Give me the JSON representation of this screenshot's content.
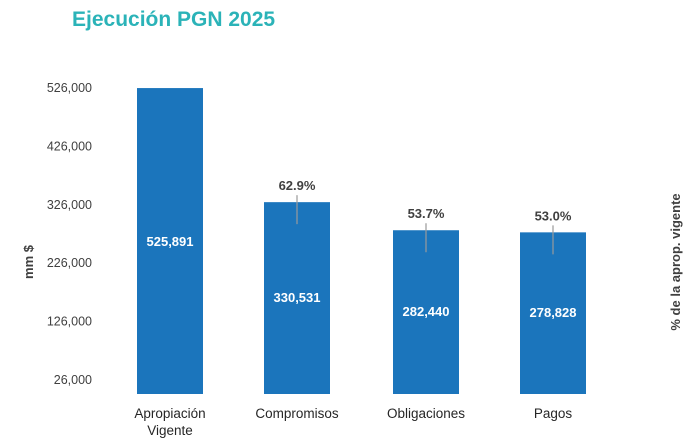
{
  "chart_data": {
    "type": "bar",
    "title": "Ejecución PGN 2025",
    "ylabel": "mm $",
    "y2label": "% de la aprop. vigente",
    "ylim": [
      26000,
      526000
    ],
    "yticks": [
      "526,000",
      "426,000",
      "326,000",
      "226,000",
      "126,000",
      "26,000"
    ],
    "ytick_values": [
      526000,
      426000,
      326000,
      226000,
      126000,
      26000
    ],
    "categories": [
      [
        "Apropiación",
        "Vigente"
      ],
      [
        "Compromisos"
      ],
      [
        "Obligaciones"
      ],
      [
        "Pagos"
      ]
    ],
    "values": [
      525891,
      330531,
      282440,
      278828
    ],
    "value_labels": [
      "525,891",
      "330,531",
      "282,440",
      "278,828"
    ],
    "percentages": [
      null,
      62.9,
      53.7,
      53.0
    ],
    "percentage_labels": [
      "",
      "62.9%",
      "53.7%",
      "53.0%"
    ],
    "grid": false,
    "bar_color": "#1b75bc",
    "title_color": "#2bb3b8"
  }
}
